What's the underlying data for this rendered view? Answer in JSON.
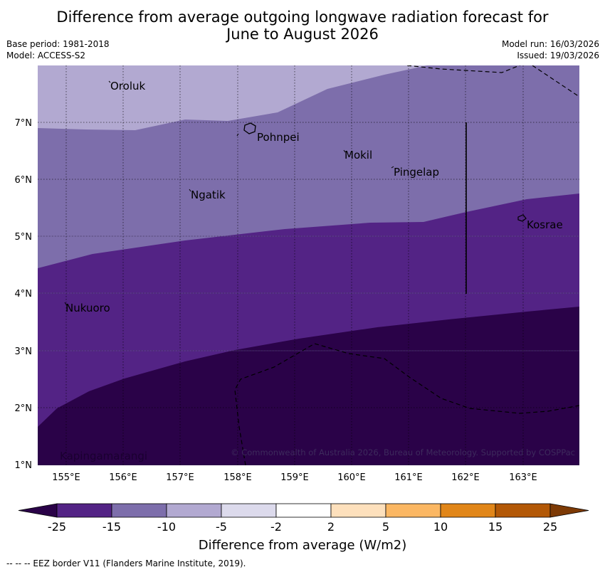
{
  "header": {
    "title_line1": "Difference from average outgoing longwave radiation forecast for",
    "title_line2": "June to August 2026",
    "base_period": "Base period: 1981-2018",
    "model": "Model: ACCESS-S2",
    "model_run": "Model run: 16/03/2026",
    "issued": "Issued: 19/03/2026"
  },
  "map": {
    "lon_ticks": [
      "155°E",
      "156°E",
      "157°E",
      "158°E",
      "159°E",
      "160°E",
      "161°E",
      "162°E",
      "163°E"
    ],
    "lat_ticks": [
      "7°N",
      "6°N",
      "5°N",
      "4°N",
      "3°N",
      "2°N",
      "1°N"
    ],
    "places": [
      "Oroluk",
      "Pohnpei",
      "Mokil",
      "Pingelap",
      "Ngatik",
      "Kosrae",
      "Nukuoro",
      "Kapingamarangi"
    ],
    "copyright": "© Commonwealth of Australia 2026, Bureau of Meteorology. Supported by COSPPac"
  },
  "colorbar": {
    "title": "Difference from average (W/m2)",
    "labels": [
      "-25",
      "-15",
      "-10",
      "-5",
      "-2",
      "2",
      "5",
      "10",
      "15",
      "25"
    ],
    "colors": [
      "#2a0248",
      "#532385",
      "#7d6eab",
      "#b2a9d1",
      "#dcdaec",
      "#ffffff",
      "#fde0bc",
      "#fbb763",
      "#e18619",
      "#b35806",
      "#7d3a05"
    ]
  },
  "footer": {
    "eez_legend": "-- -- -- EEZ border V11 (Flanders Marine Institute, 2019)."
  }
}
